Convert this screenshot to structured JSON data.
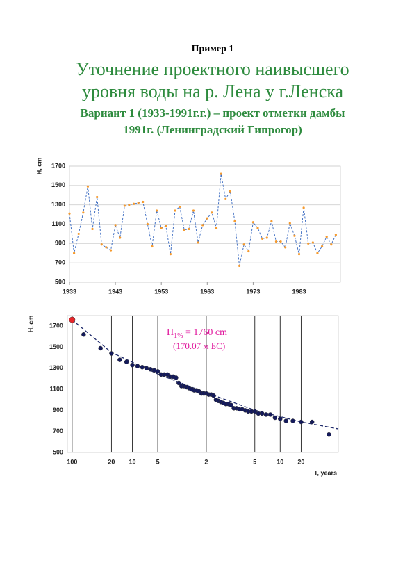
{
  "header": {
    "label": "Пример 1",
    "title_lines": [
      "Уточнение проектного наивысшего",
      "уровня воды на р. Лена у г.Ленска"
    ],
    "subtitle_lines": [
      "Вариант 1 (1933-1991г.г.) – проект отметки дамбы",
      "1991г. (Ленинградский Гипрогор)"
    ]
  },
  "chart_data": [
    {
      "type": "line",
      "y_label": "H, cm",
      "x": [
        1933,
        1934,
        1935,
        1936,
        1937,
        1938,
        1939,
        1940,
        1941,
        1942,
        1943,
        1944,
        1945,
        1946,
        1947,
        1948,
        1949,
        1950,
        1951,
        1952,
        1953,
        1954,
        1955,
        1956,
        1957,
        1958,
        1959,
        1960,
        1961,
        1962,
        1963,
        1964,
        1965,
        1966,
        1967,
        1968,
        1969,
        1970,
        1971,
        1972,
        1973,
        1974,
        1975,
        1976,
        1977,
        1978,
        1979,
        1980,
        1981,
        1982,
        1983,
        1984,
        1985,
        1986,
        1987,
        1988,
        1989,
        1990,
        1991
      ],
      "series": [
        {
          "color": "#4472c4",
          "marker_color": "#f59a2e",
          "values": [
            1210,
            800,
            1000,
            1220,
            1490,
            1050,
            1380,
            890,
            860,
            830,
            1090,
            960,
            1290,
            1300,
            1310,
            1320,
            1330,
            1100,
            870,
            1240,
            1060,
            1080,
            790,
            1240,
            1280,
            1040,
            1050,
            1240,
            910,
            1090,
            1160,
            1220,
            1060,
            1620,
            1360,
            1440,
            1130,
            670,
            890,
            820,
            1120,
            1060,
            950,
            960,
            1130,
            920,
            920,
            860,
            1110,
            980,
            790,
            1270,
            900,
            910,
            800,
            870,
            970,
            890,
            990
          ]
        }
      ],
      "xlim": [
        1933,
        1992
      ],
      "xticks": [
        1933,
        1943,
        1953,
        1963,
        1973,
        1983
      ],
      "ylim": [
        500,
        1700
      ],
      "yticks": [
        500,
        700,
        900,
        1100,
        1300,
        1500,
        1700
      ],
      "grid": "y"
    },
    {
      "type": "scatter",
      "xscale": "probability",
      "y_label": "H, cm",
      "x_label": "T, years",
      "series": [
        {
          "kind": "line",
          "color": "#1f2a6b",
          "x": [
            1,
            5,
            20,
            50,
            80,
            95,
            98.9
          ],
          "values": [
            1760,
            1450,
            1245,
            1067,
            902,
            790,
            724
          ]
        },
        {
          "kind": "points",
          "color": "#141a5c",
          "x": [
            1.67,
            3.33,
            5,
            6.67,
            8.33,
            10,
            11.67,
            13.33,
            15,
            16.67,
            18.33,
            20,
            21.67,
            23.33,
            25,
            26.67,
            28.33,
            30,
            31.67,
            33.33,
            35,
            36.67,
            38.33,
            40,
            41.67,
            43.33,
            45,
            46.67,
            48.33,
            50,
            51.67,
            53.33,
            55,
            56.67,
            58.33,
            60,
            61.67,
            63.33,
            65,
            66.67,
            68.33,
            70,
            71.67,
            73.33,
            75,
            76.67,
            78.33,
            80,
            81.67,
            83.33,
            85,
            86.67,
            88.33,
            90,
            91.67,
            93.33,
            95,
            96.67,
            98.33
          ],
          "values": [
            1620,
            1490,
            1440,
            1380,
            1360,
            1330,
            1320,
            1310,
            1300,
            1290,
            1280,
            1270,
            1240,
            1240,
            1240,
            1220,
            1220,
            1210,
            1160,
            1130,
            1130,
            1120,
            1110,
            1100,
            1090,
            1090,
            1080,
            1060,
            1060,
            1060,
            1050,
            1050,
            1040,
            1000,
            990,
            980,
            970,
            960,
            960,
            950,
            920,
            920,
            910,
            910,
            900,
            890,
            890,
            890,
            870,
            870,
            860,
            860,
            830,
            820,
            800,
            800,
            790,
            790,
            670
          ]
        },
        {
          "kind": "points",
          "color": "#e8262a",
          "x": [
            1
          ],
          "values": [
            1760
          ]
        }
      ],
      "annotation": {
        "symbol": "H",
        "subscript": "1%",
        "text": " = 1760 cm",
        "note": "(170.07 м БС)",
        "color": "#e0169c"
      },
      "xlim": [
        0.8,
        98.9
      ],
      "xticks": [
        {
          "value": 1,
          "label": "100"
        },
        {
          "value": 5,
          "label": "20"
        },
        {
          "value": 10,
          "label": "10"
        },
        {
          "value": 20,
          "label": "5"
        },
        {
          "value": 50,
          "label": "2"
        },
        {
          "value": 80,
          "label": "5"
        },
        {
          "value": 90,
          "label": "10"
        },
        {
          "value": 95,
          "label": "20"
        }
      ],
      "ylim": [
        500,
        1800
      ],
      "yticks": [
        500,
        700,
        900,
        1100,
        1300,
        1500,
        1700
      ],
      "grid": "x"
    }
  ]
}
